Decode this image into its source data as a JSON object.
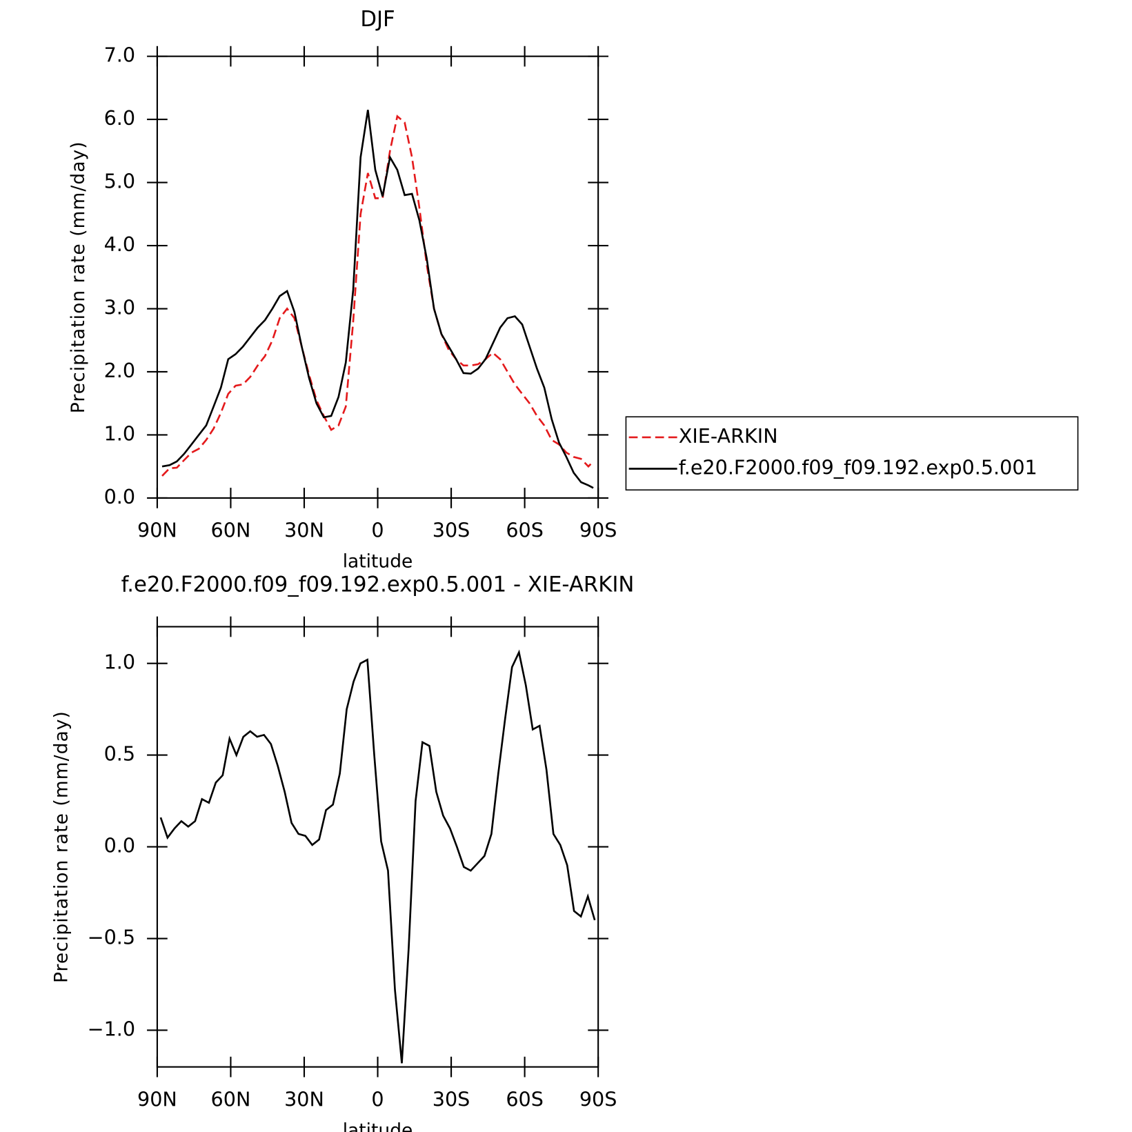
{
  "chart_data": [
    {
      "type": "line",
      "title": "DJF",
      "xlabel": "latitude",
      "ylabel": "Precipitation rate (mm/day)",
      "xlim": [
        90,
        -90
      ],
      "xticks": [
        {
          "value": 90,
          "label": "90N"
        },
        {
          "value": 60,
          "label": "60N"
        },
        {
          "value": 30,
          "label": "30N"
        },
        0,
        {
          "value": -30,
          "label": "30S"
        },
        {
          "value": -60,
          "label": "60S"
        },
        {
          "value": -90,
          "label": "90S"
        }
      ],
      "ylim": [
        0,
        7
      ],
      "yticks": [
        {
          "value": 0,
          "label": "0.0"
        },
        {
          "value": 1,
          "label": "1.0"
        },
        {
          "value": 2,
          "label": "2.0"
        },
        {
          "value": 3,
          "label": "3.0"
        },
        {
          "value": 4,
          "label": "4.0"
        },
        {
          "value": 5,
          "label": "5.0"
        },
        {
          "value": 6,
          "label": "6.0"
        },
        {
          "value": 7,
          "label": "7.0"
        }
      ],
      "legend": "right",
      "x": [
        88,
        85,
        82,
        79,
        76,
        73,
        70,
        67,
        64,
        61,
        58,
        55,
        52,
        49,
        46,
        43,
        40,
        37,
        34,
        31,
        28,
        25,
        22,
        19,
        16,
        13,
        10,
        7,
        4,
        1,
        -2,
        -5,
        -8,
        -11,
        -14,
        -17,
        -20,
        -23,
        -26,
        -29,
        -32,
        -35,
        -38,
        -41,
        -44,
        -47,
        -50,
        -53,
        -56,
        -59,
        -62,
        -65,
        -68,
        -71,
        -74,
        -77,
        -80,
        -83,
        -86,
        -88
      ],
      "series": [
        {
          "name": "XIE-ARKIN",
          "color": "#e41a1c",
          "dashed": true,
          "values": [
            0.35,
            0.47,
            0.48,
            0.6,
            0.72,
            0.78,
            0.92,
            1.1,
            1.35,
            1.65,
            1.78,
            1.8,
            1.92,
            2.1,
            2.25,
            2.5,
            2.85,
            3.0,
            2.85,
            2.4,
            1.95,
            1.55,
            1.3,
            1.08,
            1.15,
            1.45,
            2.8,
            4.5,
            5.15,
            4.75,
            4.75,
            5.5,
            6.05,
            5.95,
            5.4,
            4.6,
            3.7,
            3.0,
            2.6,
            2.35,
            2.2,
            2.1,
            2.1,
            2.12,
            2.2,
            2.3,
            2.2,
            2.0,
            1.8,
            1.65,
            1.5,
            1.3,
            1.15,
            0.92,
            0.85,
            0.72,
            0.65,
            0.62,
            0.5,
            0.58
          ]
        },
        {
          "name": "f.e20.F2000.f09_f09.192.exp0.5.001",
          "color": "#000000",
          "dashed": false,
          "values": [
            0.5,
            0.52,
            0.58,
            0.7,
            0.85,
            1.0,
            1.15,
            1.45,
            1.75,
            2.2,
            2.28,
            2.4,
            2.55,
            2.7,
            2.82,
            3.0,
            3.2,
            3.28,
            2.95,
            2.4,
            1.9,
            1.5,
            1.28,
            1.3,
            1.6,
            2.15,
            3.3,
            5.4,
            6.15,
            5.2,
            4.78,
            5.4,
            5.2,
            4.8,
            4.82,
            4.4,
            3.8,
            3.0,
            2.6,
            2.4,
            2.2,
            1.98,
            1.97,
            2.05,
            2.2,
            2.45,
            2.7,
            2.85,
            2.88,
            2.75,
            2.4,
            2.05,
            1.75,
            1.25,
            0.88,
            0.65,
            0.4,
            0.25,
            0.2,
            0.16
          ]
        }
      ]
    },
    {
      "type": "line",
      "title": "f.e20.F2000.f09_f09.192.exp0.5.001 - XIE-ARKIN",
      "xlabel": "latitude",
      "ylabel": "Precipitation rate (mm/day)",
      "xlim": [
        90,
        -90
      ],
      "xticks": [
        {
          "value": 90,
          "label": "90N"
        },
        {
          "value": 60,
          "label": "60N"
        },
        {
          "value": 30,
          "label": "30N"
        },
        0,
        {
          "value": -30,
          "label": "30S"
        },
        {
          "value": -60,
          "label": "60S"
        },
        {
          "value": -90,
          "label": "90S"
        }
      ],
      "ylim": [
        -1.2,
        1.2
      ],
      "yticks": [
        {
          "value": -1,
          "label": "−1.0"
        },
        {
          "value": -0.5,
          "label": "−0.5"
        },
        {
          "value": 0,
          "label": "0.0"
        },
        0.5,
        {
          "value": 1,
          "label": "1.0"
        }
      ],
      "x": [
        88.59,
        85.78,
        82.97,
        80.16,
        77.34,
        74.53,
        71.72,
        68.91,
        66.09,
        63.28,
        60.47,
        57.66,
        54.84,
        52.03,
        49.22,
        46.41,
        43.59,
        40.78,
        37.97,
        35.16,
        32.34,
        29.53,
        26.72,
        23.91,
        21.09,
        18.28,
        15.47,
        12.66,
        9.84,
        7.03,
        4.22,
        1.41,
        -1.41,
        -4.22,
        -7.03,
        -9.84,
        -12.66,
        -15.47,
        -18.28,
        -21.09,
        -23.91,
        -26.72,
        -29.53,
        -32.34,
        -35.16,
        -37.97,
        -40.78,
        -43.59,
        -46.41,
        -49.22,
        -52.03,
        -54.84,
        -57.66,
        -60.47,
        -63.28,
        -66.09,
        -68.91,
        -71.72,
        -74.53,
        -77.34,
        -80.16,
        -82.97,
        -85.78,
        -88.59
      ],
      "series": [
        {
          "color": "#000000",
          "dashed": false,
          "values": [
            0.16,
            0.05,
            0.1,
            0.14,
            0.11,
            0.14,
            0.26,
            0.24,
            0.35,
            0.39,
            0.59,
            0.5,
            0.6,
            0.63,
            0.6,
            0.61,
            0.56,
            0.44,
            0.3,
            0.13,
            0.07,
            0.06,
            0.01,
            0.04,
            0.2,
            0.23,
            0.4,
            0.75,
            0.9,
            1.0,
            1.02,
            0.5,
            0.03,
            -0.13,
            -0.78,
            -1.18,
            -0.55,
            0.25,
            0.57,
            0.55,
            0.3,
            0.17,
            0.1,
            0.0,
            -0.11,
            -0.13,
            -0.09,
            -0.05,
            0.07,
            0.4,
            0.7,
            0.98,
            1.06,
            0.88,
            0.64,
            0.66,
            0.42,
            0.07,
            0.01,
            -0.1,
            -0.35,
            -0.38,
            -0.27,
            -0.4
          ]
        }
      ]
    }
  ]
}
